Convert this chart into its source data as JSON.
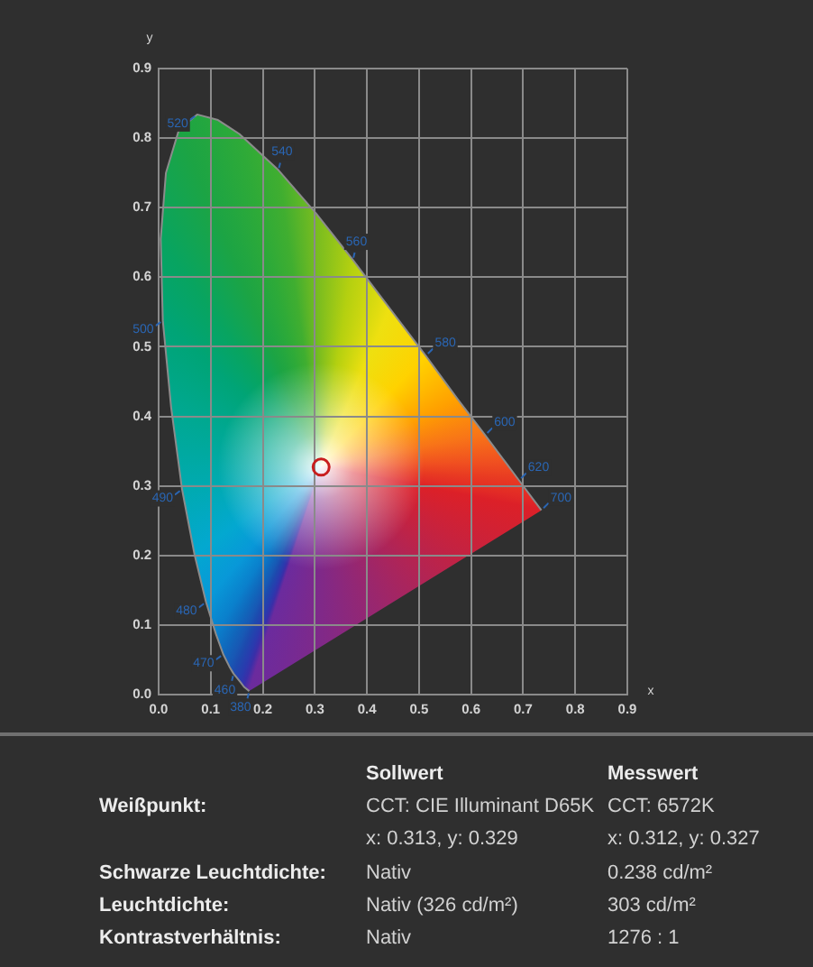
{
  "chart_data": [
    {
      "type": "scatter",
      "xlabel": "x",
      "ylabel": "y",
      "xlim": [
        0,
        0.9
      ],
      "ylim": [
        0,
        0.9
      ],
      "xticks": [
        {
          "value": 0,
          "label": "0.0"
        },
        0.1,
        0.2,
        0.3,
        0.4,
        0.5,
        0.6,
        0.7,
        0.8,
        0.9
      ],
      "yticks": [
        {
          "value": 0,
          "label": "0.0"
        },
        0.1,
        0.2,
        0.3,
        0.4,
        0.5,
        0.6,
        0.7,
        0.8,
        0.9
      ],
      "grid": true,
      "series": [
        {
          "type": "line",
          "color": "#8c8c8c",
          "x": [
            0.174,
            0.164,
            0.157,
            0.144,
            0.136,
            0.124,
            0.11,
            0.091,
            0.069,
            0.045,
            0.024,
            0.008,
            0.004,
            0.014,
            0.039,
            0.074,
            0.114,
            0.155,
            0.23,
            0.302,
            0.373,
            0.444,
            0.513,
            0.575,
            0.627,
            0.666,
            0.692,
            0.719,
            0.735
          ],
          "values": [
            0.005,
            0.011,
            0.018,
            0.03,
            0.04,
            0.058,
            0.087,
            0.133,
            0.201,
            0.295,
            0.413,
            0.538,
            0.655,
            0.75,
            0.812,
            0.834,
            0.826,
            0.806,
            0.754,
            0.692,
            0.625,
            0.555,
            0.487,
            0.424,
            0.373,
            0.334,
            0.308,
            0.281,
            0.265
          ],
          "colors": [
            "#6b2b9e",
            "#3a2fa8",
            "#2a3aae",
            "#1d4aae",
            "#1858b4",
            "#1068bc",
            "#0a80cc",
            "#0898d8",
            "#03a8d0",
            "#00aab0",
            "#00a890",
            "#00a476",
            "#08a460",
            "#14a450",
            "#1ca444",
            "#22a640",
            "#28a83c",
            "#2eaa38",
            "#40ae30",
            "#78bc20",
            "#b4d010",
            "#eee010",
            "#ffd200",
            "#ffa000",
            "#f87418",
            "#f05020",
            "#e83a22",
            "#e22a26",
            "#dc2028"
          ]
        },
        {
          "type": "scatter",
          "x": [
            0.312
          ],
          "values": [
            0.327
          ],
          "color": "#c81e1e",
          "marker": "circle"
        }
      ],
      "annotations": [
        {
          "text": "380",
          "x": 0.174,
          "y": 0.005
        },
        {
          "text": "460",
          "x": 0.144,
          "y": 0.03
        },
        {
          "text": "470",
          "x": 0.124,
          "y": 0.058
        },
        {
          "text": "480",
          "x": 0.091,
          "y": 0.133
        },
        {
          "text": "490",
          "x": 0.045,
          "y": 0.295
        },
        {
          "text": "500",
          "x": 0.008,
          "y": 0.538
        },
        {
          "text": "520",
          "x": 0.074,
          "y": 0.834
        },
        {
          "text": "540",
          "x": 0.23,
          "y": 0.754
        },
        {
          "text": "560",
          "x": 0.373,
          "y": 0.625
        },
        {
          "text": "580",
          "x": 0.513,
          "y": 0.487
        },
        {
          "text": "600",
          "x": 0.627,
          "y": 0.373
        },
        {
          "text": "620",
          "x": 0.692,
          "y": 0.308
        },
        {
          "text": "700",
          "x": 0.735,
          "y": 0.265
        }
      ]
    },
    {
      "type": "other",
      "categories": [
        "Sollwert",
        "Messwert"
      ],
      "y_categories": [
        "Weißpunkt:",
        null,
        "Schwarze Leuchtdichte:",
        "Leuchtdichte:",
        "Kontrastverhältnis:"
      ],
      "cell_labels": [
        [
          "CCT: CIE Illuminant D65K",
          "CCT: 6572K"
        ],
        [
          "x: 0.313, y: 0.329",
          "x: 0.312, y: 0.327"
        ],
        [
          "Nativ",
          "0.238 cd/m²"
        ],
        [
          "Nativ (326 cd/m²)",
          "303 cd/m²"
        ],
        [
          "Nativ",
          "1276 : 1"
        ]
      ]
    }
  ]
}
